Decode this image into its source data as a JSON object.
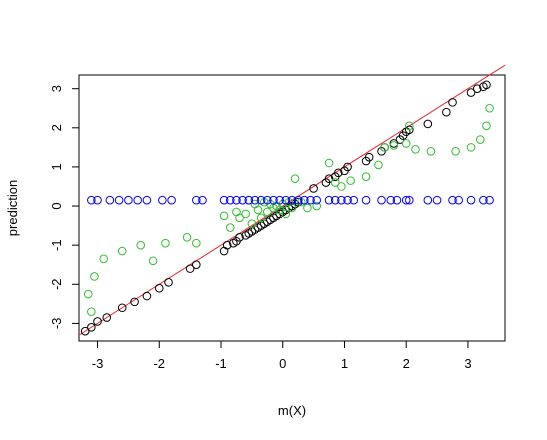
{
  "chart_data": {
    "type": "scatter",
    "xlabel": "m(X)",
    "ylabel": "prediction",
    "xlim": [
      -3.3,
      3.6
    ],
    "ylim": [
      -3.45,
      3.35
    ],
    "x_ticks": [
      -3,
      -2,
      -1,
      0,
      1,
      2,
      3
    ],
    "y_ticks": [
      -3,
      -2,
      -1,
      0,
      1,
      2,
      3
    ],
    "grid": false,
    "legend": "none",
    "reference_line": {
      "from": [
        -3.3,
        -3.3
      ],
      "to": [
        3.6,
        3.6
      ],
      "color": "#e8262f"
    },
    "series": [
      {
        "color": "#000000",
        "points": [
          [
            -3.2,
            -3.2
          ],
          [
            -3.1,
            -3.1
          ],
          [
            -3.0,
            -2.95
          ],
          [
            -2.85,
            -2.85
          ],
          [
            -2.6,
            -2.6
          ],
          [
            -2.4,
            -2.45
          ],
          [
            -2.2,
            -2.3
          ],
          [
            -2.0,
            -2.1
          ],
          [
            -1.85,
            -1.95
          ],
          [
            -1.5,
            -1.6
          ],
          [
            -1.4,
            -1.5
          ],
          [
            -0.95,
            -1.15
          ],
          [
            -0.9,
            -1.0
          ],
          [
            -0.8,
            -0.95
          ],
          [
            -0.75,
            -0.9
          ],
          [
            -0.7,
            -0.8
          ],
          [
            -0.6,
            -0.75
          ],
          [
            -0.55,
            -0.7
          ],
          [
            -0.5,
            -0.65
          ],
          [
            -0.45,
            -0.6
          ],
          [
            -0.4,
            -0.55
          ],
          [
            -0.35,
            -0.5
          ],
          [
            -0.3,
            -0.45
          ],
          [
            -0.25,
            -0.4
          ],
          [
            -0.2,
            -0.35
          ],
          [
            -0.15,
            -0.3
          ],
          [
            -0.1,
            -0.25
          ],
          [
            -0.05,
            -0.2
          ],
          [
            0.0,
            -0.15
          ],
          [
            0.05,
            -0.1
          ],
          [
            0.1,
            -0.05
          ],
          [
            0.15,
            0.0
          ],
          [
            0.2,
            0.05
          ],
          [
            0.25,
            0.1
          ],
          [
            0.5,
            0.45
          ],
          [
            0.7,
            0.6
          ],
          [
            0.75,
            0.7
          ],
          [
            0.85,
            0.75
          ],
          [
            0.9,
            0.85
          ],
          [
            1.0,
            0.9
          ],
          [
            1.05,
            1.0
          ],
          [
            1.35,
            1.15
          ],
          [
            1.4,
            1.25
          ],
          [
            1.6,
            1.4
          ],
          [
            1.65,
            1.5
          ],
          [
            1.8,
            1.6
          ],
          [
            1.9,
            1.7
          ],
          [
            1.95,
            1.8
          ],
          [
            2.0,
            1.9
          ],
          [
            2.05,
            1.95
          ],
          [
            2.35,
            2.1
          ],
          [
            2.65,
            2.4
          ],
          [
            2.75,
            2.65
          ],
          [
            3.05,
            2.9
          ],
          [
            3.15,
            3.0
          ],
          [
            3.25,
            3.05
          ],
          [
            3.3,
            3.1
          ]
        ]
      },
      {
        "color": "#2fbf2f",
        "points": [
          [
            -3.15,
            -2.25
          ],
          [
            -3.1,
            -2.7
          ],
          [
            -3.05,
            -1.8
          ],
          [
            -2.9,
            -1.35
          ],
          [
            -2.6,
            -1.15
          ],
          [
            -2.3,
            -1.0
          ],
          [
            -2.1,
            -1.4
          ],
          [
            -1.9,
            -0.95
          ],
          [
            -1.55,
            -0.8
          ],
          [
            -1.4,
            -0.95
          ],
          [
            -0.95,
            -0.25
          ],
          [
            -0.85,
            -0.55
          ],
          [
            -0.75,
            -0.15
          ],
          [
            -0.7,
            -0.3
          ],
          [
            -0.6,
            -0.2
          ],
          [
            -0.55,
            0.15
          ],
          [
            -0.5,
            -0.45
          ],
          [
            -0.45,
            0.05
          ],
          [
            -0.4,
            -0.1
          ],
          [
            -0.35,
            -0.3
          ],
          [
            -0.3,
            0.1
          ],
          [
            -0.25,
            -0.15
          ],
          [
            -0.2,
            0.05
          ],
          [
            -0.15,
            -0.05
          ],
          [
            -0.1,
            0.0
          ],
          [
            -0.05,
            -0.1
          ],
          [
            0.0,
            0.05
          ],
          [
            0.05,
            -0.2
          ],
          [
            0.1,
            0.1
          ],
          [
            0.15,
            -0.05
          ],
          [
            0.2,
            0.7
          ],
          [
            0.3,
            0.1
          ],
          [
            0.4,
            -0.05
          ],
          [
            0.55,
            0.0
          ],
          [
            0.75,
            1.1
          ],
          [
            0.85,
            0.6
          ],
          [
            0.95,
            0.5
          ],
          [
            1.1,
            0.65
          ],
          [
            1.35,
            0.75
          ],
          [
            1.55,
            1.05
          ],
          [
            1.65,
            1.5
          ],
          [
            1.8,
            1.55
          ],
          [
            2.0,
            1.6
          ],
          [
            2.05,
            2.05
          ],
          [
            2.15,
            1.45
          ],
          [
            2.4,
            1.4
          ],
          [
            2.8,
            1.4
          ],
          [
            3.05,
            1.5
          ],
          [
            3.2,
            1.7
          ],
          [
            3.3,
            2.05
          ],
          [
            3.35,
            2.5
          ]
        ]
      },
      {
        "color": "#0000ff",
        "points": [
          [
            -3.1,
            0.15
          ],
          [
            -3.0,
            0.15
          ],
          [
            -2.8,
            0.15
          ],
          [
            -2.65,
            0.15
          ],
          [
            -2.5,
            0.15
          ],
          [
            -2.35,
            0.15
          ],
          [
            -2.2,
            0.15
          ],
          [
            -1.95,
            0.15
          ],
          [
            -1.8,
            0.15
          ],
          [
            -1.4,
            0.15
          ],
          [
            -1.3,
            0.15
          ],
          [
            -0.95,
            0.15
          ],
          [
            -0.85,
            0.15
          ],
          [
            -0.75,
            0.15
          ],
          [
            -0.65,
            0.15
          ],
          [
            -0.55,
            0.15
          ],
          [
            -0.45,
            0.15
          ],
          [
            -0.35,
            0.15
          ],
          [
            -0.25,
            0.15
          ],
          [
            -0.15,
            0.15
          ],
          [
            -0.05,
            0.15
          ],
          [
            0.05,
            0.15
          ],
          [
            0.15,
            0.15
          ],
          [
            0.25,
            0.15
          ],
          [
            0.35,
            0.15
          ],
          [
            0.45,
            0.15
          ],
          [
            0.55,
            0.15
          ],
          [
            0.75,
            0.15
          ],
          [
            0.85,
            0.15
          ],
          [
            0.95,
            0.15
          ],
          [
            1.05,
            0.15
          ],
          [
            1.15,
            0.15
          ],
          [
            1.35,
            0.15
          ],
          [
            1.6,
            0.15
          ],
          [
            1.75,
            0.15
          ],
          [
            1.85,
            0.15
          ],
          [
            2.0,
            0.15
          ],
          [
            2.05,
            0.15
          ],
          [
            2.35,
            0.15
          ],
          [
            2.5,
            0.15
          ],
          [
            2.75,
            0.15
          ],
          [
            2.85,
            0.15
          ],
          [
            3.05,
            0.15
          ],
          [
            3.25,
            0.15
          ],
          [
            3.35,
            0.15
          ]
        ]
      }
    ]
  }
}
